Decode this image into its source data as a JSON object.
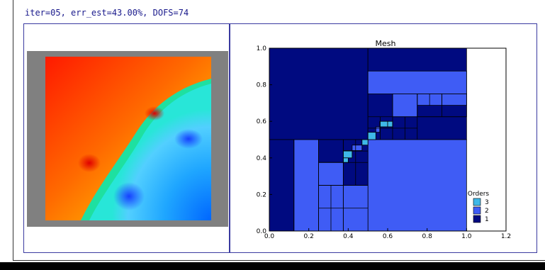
{
  "status_line": "iter=05, err_est=43.00%, DOFS=74",
  "solution_view": {
    "background_color": "#808080"
  },
  "mesh_view": {
    "chart_data": {
      "type": "mesh",
      "title": "Mesh",
      "xlim": [
        0.0,
        1.2
      ],
      "ylim": [
        0.0,
        1.0
      ],
      "x_ticks": [
        "0.0",
        "0.2",
        "0.4",
        "0.6",
        "0.8",
        "1.0",
        "1.2"
      ],
      "y_ticks": [
        "0.0",
        "0.2",
        "0.4",
        "0.6",
        "0.8",
        "1.0"
      ],
      "legend": {
        "title": "Orders",
        "placement": "lower-right",
        "entries": [
          {
            "label": "3",
            "color": "#3fb8e8"
          },
          {
            "label": "2",
            "color": "#3f5cf5"
          },
          {
            "label": "1",
            "color": "#000a80"
          }
        ]
      },
      "elements": [
        {
          "x0": 0.0,
          "y0": 0.5,
          "x1": 0.5,
          "y1": 1.0,
          "order": 1
        },
        {
          "x0": 0.5,
          "y0": 0.5,
          "x1": 1.0,
          "y1": 1.0,
          "order": 1
        },
        {
          "x0": 0.5,
          "y0": 0.0,
          "x1": 1.0,
          "y1": 0.5,
          "order": 2
        },
        {
          "x0": 0.0,
          "y0": 0.0,
          "x1": 0.125,
          "y1": 0.5,
          "order": 1
        },
        {
          "x0": 0.125,
          "y0": 0.0,
          "x1": 0.25,
          "y1": 0.5,
          "order": 2
        },
        {
          "x0": 0.25,
          "y0": 0.375,
          "x1": 0.375,
          "y1": 0.5,
          "order": 1
        },
        {
          "x0": 0.25,
          "y0": 0.25,
          "x1": 0.375,
          "y1": 0.375,
          "order": 2
        },
        {
          "x0": 0.25,
          "y0": 0.0,
          "x1": 0.375,
          "y1": 0.25,
          "order": 2
        },
        {
          "x0": 0.375,
          "y0": 0.25,
          "x1": 0.5,
          "y1": 0.5,
          "order": 1
        },
        {
          "x0": 0.375,
          "y0": 0.0,
          "x1": 0.5,
          "y1": 0.25,
          "order": 2
        },
        {
          "x0": 0.5,
          "y0": 0.75,
          "x1": 1.0,
          "y1": 0.875,
          "order": 2
        },
        {
          "x0": 0.75,
          "y0": 0.625,
          "x1": 1.0,
          "y1": 0.75,
          "order": 1
        },
        {
          "x0": 0.75,
          "y0": 0.6875,
          "x1": 0.875,
          "y1": 0.75,
          "order": 2
        },
        {
          "x0": 0.875,
          "y0": 0.6875,
          "x1": 1.0,
          "y1": 0.75,
          "order": 2
        },
        {
          "x0": 0.625,
          "y0": 0.625,
          "x1": 0.75,
          "y1": 0.75,
          "order": 2
        },
        {
          "x0": 0.375,
          "y0": 0.4,
          "x1": 0.42,
          "y1": 0.44,
          "order": 3
        },
        {
          "x0": 0.375,
          "y0": 0.375,
          "x1": 0.4,
          "y1": 0.4,
          "order": 3
        },
        {
          "x0": 0.47,
          "y0": 0.47,
          "x1": 0.5,
          "y1": 0.5,
          "order": 3
        },
        {
          "x0": 0.5,
          "y0": 0.5,
          "x1": 0.54,
          "y1": 0.54,
          "order": 3
        },
        {
          "x0": 0.56,
          "y0": 0.57,
          "x1": 0.6,
          "y1": 0.6,
          "order": 3
        },
        {
          "x0": 0.6,
          "y0": 0.57,
          "x1": 0.625,
          "y1": 0.6,
          "order": 3
        },
        {
          "x0": 0.42,
          "y0": 0.44,
          "x1": 0.47,
          "y1": 0.47,
          "order": 2
        },
        {
          "x0": 0.54,
          "y0": 0.54,
          "x1": 0.56,
          "y1": 0.57,
          "order": 2
        }
      ],
      "grid_lines": [
        {
          "x0": 0.125,
          "y0": 0.0,
          "x1": 0.125,
          "y1": 0.5
        },
        {
          "x0": 0.25,
          "y0": 0.0,
          "x1": 0.25,
          "y1": 0.5
        },
        {
          "x0": 0.375,
          "y0": 0.0,
          "x1": 0.375,
          "y1": 0.5
        },
        {
          "x0": 0.25,
          "y0": 0.25,
          "x1": 0.5,
          "y1": 0.25
        },
        {
          "x0": 0.25,
          "y0": 0.375,
          "x1": 0.5,
          "y1": 0.375
        },
        {
          "x0": 0.3125,
          "y0": 0.0,
          "x1": 0.3125,
          "y1": 0.25
        },
        {
          "x0": 0.25,
          "y0": 0.125,
          "x1": 0.5,
          "y1": 0.125
        },
        {
          "x0": 0.4375,
          "y0": 0.25,
          "x1": 0.4375,
          "y1": 0.5
        },
        {
          "x0": 0.375,
          "y0": 0.4375,
          "x1": 0.5,
          "y1": 0.4375
        },
        {
          "x0": 0.5,
          "y0": 0.625,
          "x1": 1.0,
          "y1": 0.625
        },
        {
          "x0": 0.625,
          "y0": 0.5,
          "x1": 0.625,
          "y1": 0.75
        },
        {
          "x0": 0.5,
          "y0": 0.5625,
          "x1": 0.75,
          "y1": 0.5625
        },
        {
          "x0": 0.5625,
          "y0": 0.5,
          "x1": 0.5625,
          "y1": 0.625
        },
        {
          "x0": 0.6875,
          "y0": 0.5,
          "x1": 0.6875,
          "y1": 0.625
        },
        {
          "x0": 0.75,
          "y0": 0.5,
          "x1": 0.75,
          "y1": 0.75
        },
        {
          "x0": 0.875,
          "y0": 0.625,
          "x1": 0.875,
          "y1": 0.75
        },
        {
          "x0": 0.8125,
          "y0": 0.6875,
          "x1": 0.8125,
          "y1": 0.75
        }
      ]
    }
  }
}
